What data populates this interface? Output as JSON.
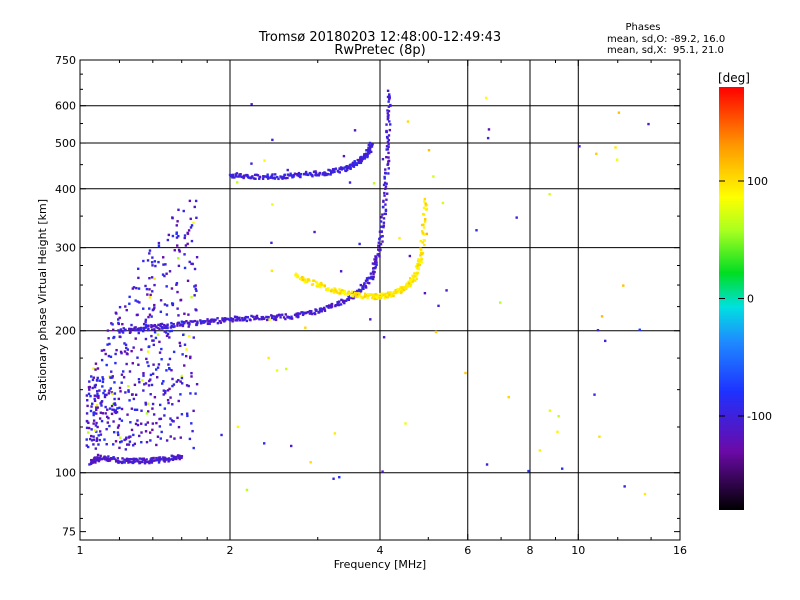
{
  "chart_data": {
    "type": "scatter",
    "title": "Tromsø 20180203 12:48:00-12:49:43",
    "subtitle": "RwPretec (8p)",
    "xlabel": "Frequency [MHz]",
    "ylabel": "Stationary phase Virtual Height [km]",
    "x_scale": "log",
    "y_scale": "log",
    "xlim": [
      1,
      16
    ],
    "ylim": [
      72,
      750
    ],
    "x_ticks": [
      1,
      2,
      4,
      6,
      8,
      10,
      16
    ],
    "x_tick_labels": [
      "1",
      "2",
      "4",
      "6",
      "8",
      "10",
      "16"
    ],
    "y_ticks": [
      75,
      100,
      200,
      300,
      400,
      500,
      600,
      750
    ],
    "y_tick_labels": [
      "75",
      "100",
      "200",
      "300",
      "400",
      "500",
      "600",
      "750"
    ],
    "x_gridlines": [
      2,
      4,
      6,
      8,
      10
    ],
    "y_gridlines": [
      100,
      200,
      300,
      400,
      500,
      600
    ],
    "grid": true,
    "phase_legend": {
      "title": "Phases",
      "line1": "mean, sd,O: -89.2, 16.0",
      "line2": "mean, sd,X:  95.1, 21.0"
    },
    "colorbar": {
      "label": "[deg]",
      "range": [
        -180,
        180
      ],
      "ticks": [
        100,
        0,
        -100
      ],
      "tick_labels": [
        "100",
        "0",
        "-100"
      ]
    },
    "series": [
      {
        "kind": "o-mode F-layer trace",
        "phase": -105,
        "x": [
          1.2,
          1.35,
          1.5,
          1.7,
          1.9,
          2.1,
          2.4,
          2.7,
          3.0,
          3.3,
          3.6,
          3.85,
          4.0,
          4.1,
          4.15,
          4.18
        ],
        "y": [
          200,
          202,
          205,
          208,
          210,
          212,
          213,
          215,
          220,
          228,
          240,
          260,
          300,
          380,
          500,
          640
        ]
      },
      {
        "kind": "x-mode F-layer trace",
        "phase": 95,
        "x": [
          2.7,
          3.0,
          3.3,
          3.6,
          3.9,
          4.1,
          4.3,
          4.5,
          4.7,
          4.85,
          4.95
        ],
        "y": [
          262,
          250,
          242,
          238,
          236,
          237,
          240,
          247,
          260,
          290,
          380
        ]
      },
      {
        "kind": "upper trace",
        "phase": -100,
        "x": [
          2.0,
          2.2,
          2.5,
          2.8,
          3.1,
          3.4,
          3.6,
          3.75,
          3.85
        ],
        "y": [
          428,
          425,
          424,
          428,
          432,
          440,
          455,
          470,
          495
        ]
      },
      {
        "kind": "E / low frequency trace",
        "phase": -110,
        "x": [
          1.05,
          1.1,
          1.2,
          1.3,
          1.4,
          1.5,
          1.6
        ],
        "y": [
          105,
          108,
          106,
          106,
          106,
          107,
          108
        ]
      }
    ]
  }
}
